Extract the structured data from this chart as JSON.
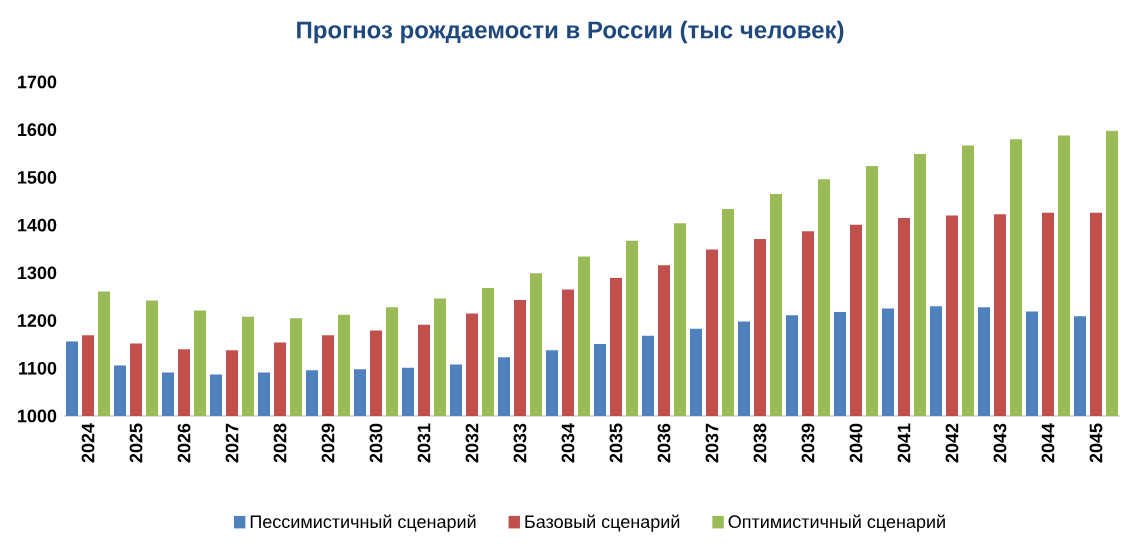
{
  "chart_data": {
    "type": "bar",
    "title": "Прогноз рождаемости в России (тыс человек)",
    "categories": [
      "2024",
      "2025",
      "2026",
      "2027",
      "2028",
      "2029",
      "2030",
      "2031",
      "2032",
      "2033",
      "2034",
      "2035",
      "2036",
      "2037",
      "2038",
      "2039",
      "2040",
      "2041",
      "2042",
      "2043",
      "2044",
      "2045"
    ],
    "series": [
      {
        "name": "Пессимистичный сценарий",
        "color": "#4f81bd",
        "values": [
          1156,
          1106,
          1091,
          1087,
          1091,
          1096,
          1098,
          1101,
          1108,
          1123,
          1138,
          1151,
          1168,
          1183,
          1198,
          1211,
          1218,
          1225,
          1230,
          1228,
          1219,
          1209
        ]
      },
      {
        "name": "Базовый сценарий",
        "color": "#c0504d",
        "values": [
          1169,
          1152,
          1140,
          1138,
          1154,
          1169,
          1179,
          1191,
          1215,
          1243,
          1265,
          1289,
          1316,
          1349,
          1371,
          1387,
          1401,
          1415,
          1420,
          1423,
          1426,
          1426
        ]
      },
      {
        "name": "Оптимистичный сценарий",
        "color": "#9bbb59",
        "values": [
          1261,
          1242,
          1221,
          1208,
          1205,
          1212,
          1228,
          1246,
          1268,
          1299,
          1334,
          1367,
          1404,
          1434,
          1465,
          1496,
          1524,
          1549,
          1567,
          1580,
          1588,
          1598
        ]
      }
    ],
    "ylim": [
      1000,
      1700
    ],
    "yticks": [
      1000,
      1100,
      1200,
      1300,
      1400,
      1500,
      1600,
      1700
    ],
    "grid": false,
    "legend": "bottom"
  }
}
